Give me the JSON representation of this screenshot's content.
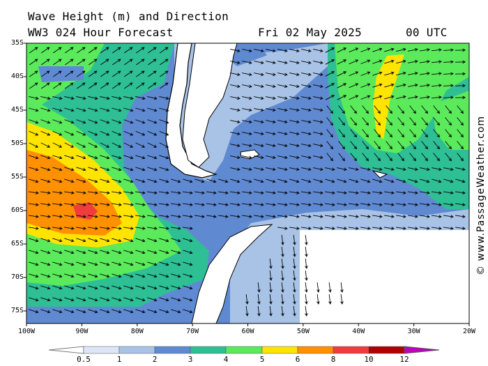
{
  "header": {
    "title": "Wave Height (m) and Direction",
    "model": "WW3 024 Hour Forecast",
    "date": "Fri 02 May 2025",
    "time": "00 UTC"
  },
  "map": {
    "lat_labels": [
      "35S",
      "40S",
      "45S",
      "50S",
      "55S",
      "60S",
      "65S",
      "70S",
      "75S"
    ],
    "lon_labels": [
      "100W",
      "90W",
      "80W",
      "70W",
      "60W",
      "50W",
      "40W",
      "30W",
      "20W"
    ],
    "credit": "© www.PassageWeather.com"
  },
  "legend": {
    "labels": [
      "0.5",
      "1",
      "2",
      "3",
      "4",
      "5",
      "6",
      "8",
      "10",
      "12"
    ],
    "colors": [
      "#dce6f6",
      "#a9c3e6",
      "#5f8ad2",
      "#2ebf95",
      "#5bea5b",
      "#ffe400",
      "#ff9000",
      "#f03c3c",
      "#b00000",
      "#c000c0"
    ]
  },
  "colors": {
    "land": "#ffffff",
    "coast": "#000000",
    "arrow": "#000000"
  }
}
